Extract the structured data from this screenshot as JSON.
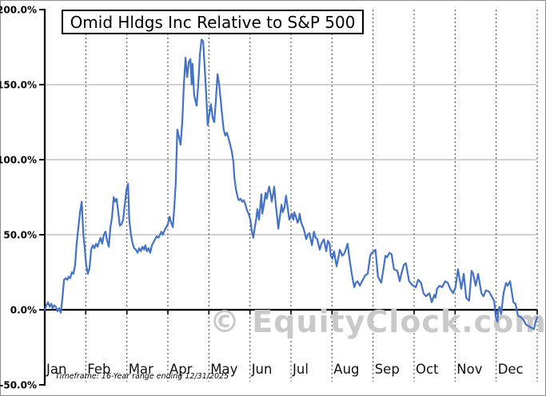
{
  "chart_data": {
    "type": "line",
    "title": "Omid Hldgs Inc Relative to S&P 500",
    "watermark": "© EquityClock.com",
    "footnote": "Timeframe: 16-Year range ending 12/31/2025",
    "x_axis": {
      "categories": [
        "Jan",
        "Feb",
        "Mar",
        "Apr",
        "May",
        "Jun",
        "Jul",
        "Aug",
        "Sep",
        "Oct",
        "Nov",
        "Dec"
      ],
      "range_months": [
        0,
        12
      ],
      "gridlines": "dashed vertical at each month boundary"
    },
    "y_axis": {
      "unit": "%",
      "min": -50,
      "max": 200,
      "tick_values": [
        200,
        150,
        100,
        50,
        0,
        -50
      ],
      "tick_labels": [
        "200.0%",
        "150.0%",
        "100.0%",
        "50.0%",
        "0.0%",
        "-50.0%"
      ],
      "gridline_values": [
        150,
        100,
        50
      ],
      "zero_line_value": 0
    },
    "legend": "none",
    "series": [
      {
        "name": "Omid Hldgs Inc relative to S&P 500",
        "color": "#4472C4",
        "points": [
          [
            0.0,
            0
          ],
          [
            0.04,
            3
          ],
          [
            0.08,
            5
          ],
          [
            0.12,
            2
          ],
          [
            0.16,
            4
          ],
          [
            0.19,
            1
          ],
          [
            0.23,
            3
          ],
          [
            0.27,
            2
          ],
          [
            0.31,
            -1
          ],
          [
            0.35,
            1
          ],
          [
            0.39,
            -2
          ],
          [
            0.43,
            8
          ],
          [
            0.47,
            20
          ],
          [
            0.51,
            21
          ],
          [
            0.55,
            20
          ],
          [
            0.58,
            22
          ],
          [
            0.62,
            21
          ],
          [
            0.66,
            25
          ],
          [
            0.7,
            24
          ],
          [
            0.74,
            30
          ],
          [
            0.78,
            45
          ],
          [
            0.82,
            55
          ],
          [
            0.86,
            65
          ],
          [
            0.9,
            72
          ],
          [
            0.94,
            50
          ],
          [
            0.97,
            42
          ],
          [
            1.01,
            30
          ],
          [
            1.05,
            24
          ],
          [
            1.09,
            28
          ],
          [
            1.13,
            40
          ],
          [
            1.17,
            43
          ],
          [
            1.21,
            41
          ],
          [
            1.25,
            44
          ],
          [
            1.29,
            42
          ],
          [
            1.32,
            45
          ],
          [
            1.36,
            48
          ],
          [
            1.4,
            44
          ],
          [
            1.44,
            50
          ],
          [
            1.48,
            52
          ],
          [
            1.52,
            46
          ],
          [
            1.56,
            42
          ],
          [
            1.6,
            55
          ],
          [
            1.64,
            62
          ],
          [
            1.68,
            75
          ],
          [
            1.71,
            72
          ],
          [
            1.75,
            74
          ],
          [
            1.79,
            65
          ],
          [
            1.83,
            56
          ],
          [
            1.87,
            57
          ],
          [
            1.91,
            60
          ],
          [
            1.95,
            70
          ],
          [
            1.99,
            80
          ],
          [
            2.03,
            84
          ],
          [
            2.06,
            60
          ],
          [
            2.1,
            50
          ],
          [
            2.14,
            44
          ],
          [
            2.18,
            41
          ],
          [
            2.22,
            40
          ],
          [
            2.26,
            38
          ],
          [
            2.3,
            41
          ],
          [
            2.34,
            39
          ],
          [
            2.38,
            42
          ],
          [
            2.42,
            40
          ],
          [
            2.45,
            43
          ],
          [
            2.49,
            39
          ],
          [
            2.53,
            41
          ],
          [
            2.57,
            38
          ],
          [
            2.61,
            43
          ],
          [
            2.65,
            45
          ],
          [
            2.69,
            47
          ],
          [
            2.73,
            49
          ],
          [
            2.77,
            48
          ],
          [
            2.81,
            50
          ],
          [
            2.84,
            52
          ],
          [
            2.88,
            50
          ],
          [
            2.92,
            53
          ],
          [
            2.96,
            55
          ],
          [
            3.0,
            57
          ],
          [
            3.04,
            62
          ],
          [
            3.08,
            58
          ],
          [
            3.12,
            55
          ],
          [
            3.16,
            70
          ],
          [
            3.19,
            84
          ],
          [
            3.23,
            120
          ],
          [
            3.27,
            115
          ],
          [
            3.31,
            110
          ],
          [
            3.35,
            125
          ],
          [
            3.39,
            150
          ],
          [
            3.43,
            168
          ],
          [
            3.47,
            155
          ],
          [
            3.51,
            165
          ],
          [
            3.55,
            167
          ],
          [
            3.58,
            150
          ],
          [
            3.6,
            164
          ],
          [
            3.64,
            143
          ],
          [
            3.7,
            136
          ],
          [
            3.74,
            150
          ],
          [
            3.78,
            170
          ],
          [
            3.82,
            180
          ],
          [
            3.86,
            179
          ],
          [
            3.9,
            160
          ],
          [
            3.94,
            140
          ],
          [
            3.97,
            123
          ],
          [
            4.01,
            130
          ],
          [
            4.05,
            137
          ],
          [
            4.09,
            128
          ],
          [
            4.13,
            125
          ],
          [
            4.17,
            140
          ],
          [
            4.21,
            157
          ],
          [
            4.25,
            150
          ],
          [
            4.29,
            139
          ],
          [
            4.32,
            130
          ],
          [
            4.36,
            120
          ],
          [
            4.4,
            116
          ],
          [
            4.44,
            118
          ],
          [
            4.48,
            114
          ],
          [
            4.52,
            110
          ],
          [
            4.56,
            105
          ],
          [
            4.6,
            98
          ],
          [
            4.62,
            88
          ],
          [
            4.66,
            80
          ],
          [
            4.7,
            75
          ],
          [
            4.73,
            73
          ],
          [
            4.77,
            74
          ],
          [
            4.81,
            72
          ],
          [
            4.85,
            73
          ],
          [
            4.89,
            70
          ],
          [
            4.93,
            66
          ],
          [
            4.97,
            64
          ],
          [
            5.01,
            60
          ],
          [
            5.05,
            52
          ],
          [
            5.08,
            48
          ],
          [
            5.12,
            55
          ],
          [
            5.16,
            62
          ],
          [
            5.18,
            67
          ],
          [
            5.22,
            60
          ],
          [
            5.28,
            77
          ],
          [
            5.3,
            64
          ],
          [
            5.34,
            70
          ],
          [
            5.38,
            78
          ],
          [
            5.41,
            74
          ],
          [
            5.45,
            80
          ],
          [
            5.47,
            82
          ],
          [
            5.51,
            76
          ],
          [
            5.53,
            72
          ],
          [
            5.57,
            78
          ],
          [
            5.59,
            82
          ],
          [
            5.63,
            70
          ],
          [
            5.67,
            60
          ],
          [
            5.69,
            54
          ],
          [
            5.73,
            62
          ],
          [
            5.77,
            70
          ],
          [
            5.8,
            65
          ],
          [
            5.84,
            68
          ],
          [
            5.88,
            76
          ],
          [
            5.92,
            68
          ],
          [
            5.96,
            60
          ],
          [
            6.02,
            64
          ],
          [
            6.06,
            60
          ],
          [
            6.08,
            65
          ],
          [
            6.12,
            62
          ],
          [
            6.16,
            58
          ],
          [
            6.19,
            60
          ],
          [
            6.21,
            64
          ],
          [
            6.25,
            58
          ],
          [
            6.31,
            54
          ],
          [
            6.37,
            47
          ],
          [
            6.41,
            50
          ],
          [
            6.45,
            51
          ],
          [
            6.51,
            43
          ],
          [
            6.56,
            52
          ],
          [
            6.6,
            48
          ],
          [
            6.64,
            47
          ],
          [
            6.7,
            40
          ],
          [
            6.74,
            44
          ],
          [
            6.8,
            47
          ],
          [
            6.86,
            39
          ],
          [
            6.9,
            46
          ],
          [
            6.94,
            44
          ],
          [
            6.97,
            36
          ],
          [
            7.01,
            34
          ],
          [
            7.05,
            39
          ],
          [
            7.11,
            29
          ],
          [
            7.15,
            34
          ],
          [
            7.19,
            40
          ],
          [
            7.25,
            36
          ],
          [
            7.29,
            37
          ],
          [
            7.32,
            39
          ],
          [
            7.38,
            44
          ],
          [
            7.42,
            35
          ],
          [
            7.48,
            24
          ],
          [
            7.54,
            15
          ],
          [
            7.58,
            18
          ],
          [
            7.62,
            19
          ],
          [
            7.68,
            16
          ],
          [
            7.73,
            19
          ],
          [
            7.77,
            21
          ],
          [
            7.81,
            23
          ],
          [
            7.87,
            24
          ],
          [
            7.93,
            36
          ],
          [
            7.97,
            38
          ],
          [
            8.03,
            39
          ],
          [
            8.06,
            40
          ],
          [
            8.12,
            22
          ],
          [
            8.2,
            18
          ],
          [
            8.24,
            25
          ],
          [
            8.3,
            36
          ],
          [
            8.34,
            35
          ],
          [
            8.4,
            38
          ],
          [
            8.45,
            37
          ],
          [
            8.51,
            27
          ],
          [
            8.59,
            26
          ],
          [
            8.65,
            19
          ],
          [
            8.69,
            24
          ],
          [
            8.75,
            30
          ],
          [
            8.8,
            31
          ],
          [
            8.88,
            19
          ],
          [
            8.94,
            17
          ],
          [
            8.98,
            16
          ],
          [
            9.04,
            15
          ],
          [
            9.1,
            20
          ],
          [
            9.17,
            18
          ],
          [
            9.23,
            11
          ],
          [
            9.29,
            9
          ],
          [
            9.37,
            11
          ],
          [
            9.43,
            5
          ],
          [
            9.49,
            10
          ],
          [
            9.52,
            8
          ],
          [
            9.56,
            14
          ],
          [
            9.62,
            16
          ],
          [
            9.68,
            15
          ],
          [
            9.76,
            19
          ],
          [
            9.82,
            18
          ],
          [
            9.88,
            14
          ],
          [
            9.95,
            11
          ],
          [
            10.01,
            15
          ],
          [
            10.07,
            27
          ],
          [
            10.15,
            14
          ],
          [
            10.21,
            24
          ],
          [
            10.27,
            8
          ],
          [
            10.34,
            6
          ],
          [
            10.4,
            26
          ],
          [
            10.44,
            24
          ],
          [
            10.5,
            16
          ],
          [
            10.56,
            24
          ],
          [
            10.64,
            11
          ],
          [
            10.69,
            9
          ],
          [
            10.75,
            13
          ],
          [
            10.83,
            12
          ],
          [
            10.89,
            9
          ],
          [
            10.95,
            6
          ],
          [
            10.99,
            -5
          ],
          [
            11.03,
            -8
          ],
          [
            11.05,
            -1
          ],
          [
            11.08,
            2
          ],
          [
            11.12,
            -3
          ],
          [
            11.18,
            11
          ],
          [
            11.24,
            18
          ],
          [
            11.28,
            16
          ],
          [
            11.34,
            19
          ],
          [
            11.42,
            5
          ],
          [
            11.47,
            4
          ],
          [
            11.53,
            -4
          ],
          [
            11.61,
            -5
          ],
          [
            11.67,
            -7
          ],
          [
            11.73,
            -10
          ],
          [
            11.8,
            -11
          ],
          [
            11.86,
            -12
          ],
          [
            11.92,
            -13
          ],
          [
            11.96,
            -8
          ],
          [
            12.0,
            -5
          ]
        ]
      }
    ],
    "colors": {
      "line": "#4472C4",
      "solid_gridline": "#a5a5a5",
      "dashed_gridline": "#3c3c3c",
      "axis": "#000000",
      "watermark": "#c9c9c9",
      "background": "#ffffff"
    }
  }
}
